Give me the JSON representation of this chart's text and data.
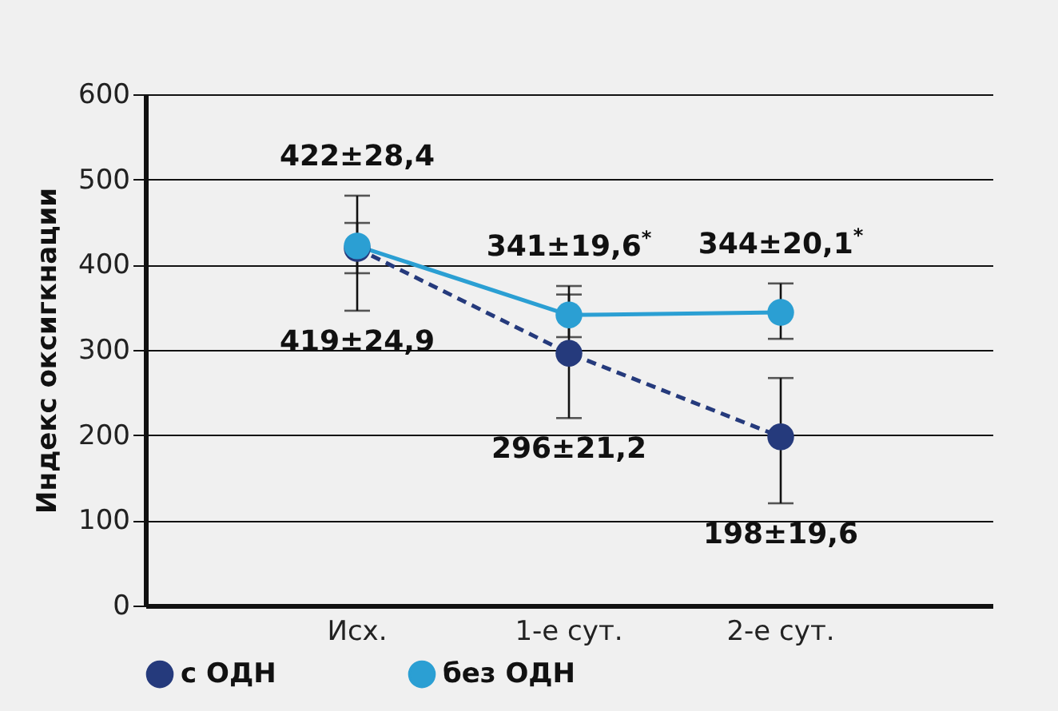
{
  "chart_data": {
    "type": "line",
    "ylabel": "Индекс оксигкнации",
    "categories": [
      "Исх.",
      "1-е сут.",
      "2-е сут."
    ],
    "series": [
      {
        "name": "с ОДН",
        "color": "#253a7c",
        "line_style": "dashed",
        "values": [
          419,
          296,
          198
        ],
        "errors": [
          [
            346,
            449
          ],
          [
            220,
            365
          ],
          [
            120,
            267
          ]
        ],
        "value_labels": [
          "419±24,9",
          "296±21,2",
          "198±19,6"
        ]
      },
      {
        "name": "без ОДН",
        "color": "#2b9fd3",
        "line_style": "solid",
        "values": [
          422,
          341,
          344
        ],
        "errors": [
          [
            390,
            481
          ],
          [
            315,
            375
          ],
          [
            313,
            378
          ]
        ],
        "value_labels": [
          "422±28,4",
          "341±19,6$^{*}$",
          "344±20,1$^{*}$"
        ]
      }
    ],
    "ylim": [
      0,
      600
    ],
    "yticks": [
      0,
      100,
      200,
      300,
      400,
      500,
      600
    ],
    "grid": "y",
    "legend": "bottom",
    "marker": "circle"
  }
}
